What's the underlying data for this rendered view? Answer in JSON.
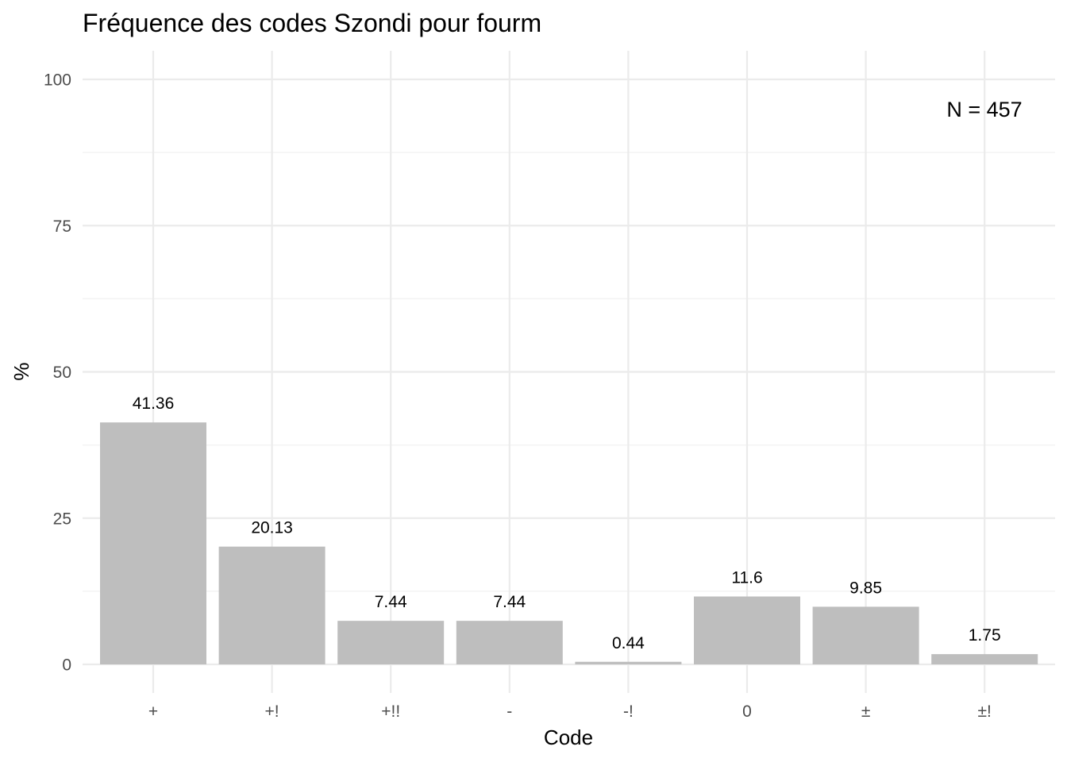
{
  "chart_data": {
    "type": "bar",
    "title": "Fréquence des codes Szondi pour fourm",
    "xlabel": "Code",
    "ylabel": "%",
    "categories": [
      "+",
      "+!",
      "+!!",
      "-",
      "-!",
      "0",
      "±",
      "±!"
    ],
    "values": [
      41.36,
      20.13,
      7.44,
      7.44,
      0.44,
      11.6,
      9.85,
      1.75
    ],
    "data_labels": [
      "41.36",
      "20.13",
      "7.44",
      "7.44",
      "0.44",
      "11.6",
      "9.85",
      "1.75"
    ],
    "ylim": [
      0,
      100
    ],
    "yticks": [
      0,
      25,
      50,
      75,
      100
    ],
    "ytick_labels": [
      "0",
      "25",
      "50",
      "75",
      "100"
    ],
    "annotation": "N = 457",
    "grid": true,
    "bar_color": "#bebebe",
    "grid_color": "#ebebeb"
  }
}
